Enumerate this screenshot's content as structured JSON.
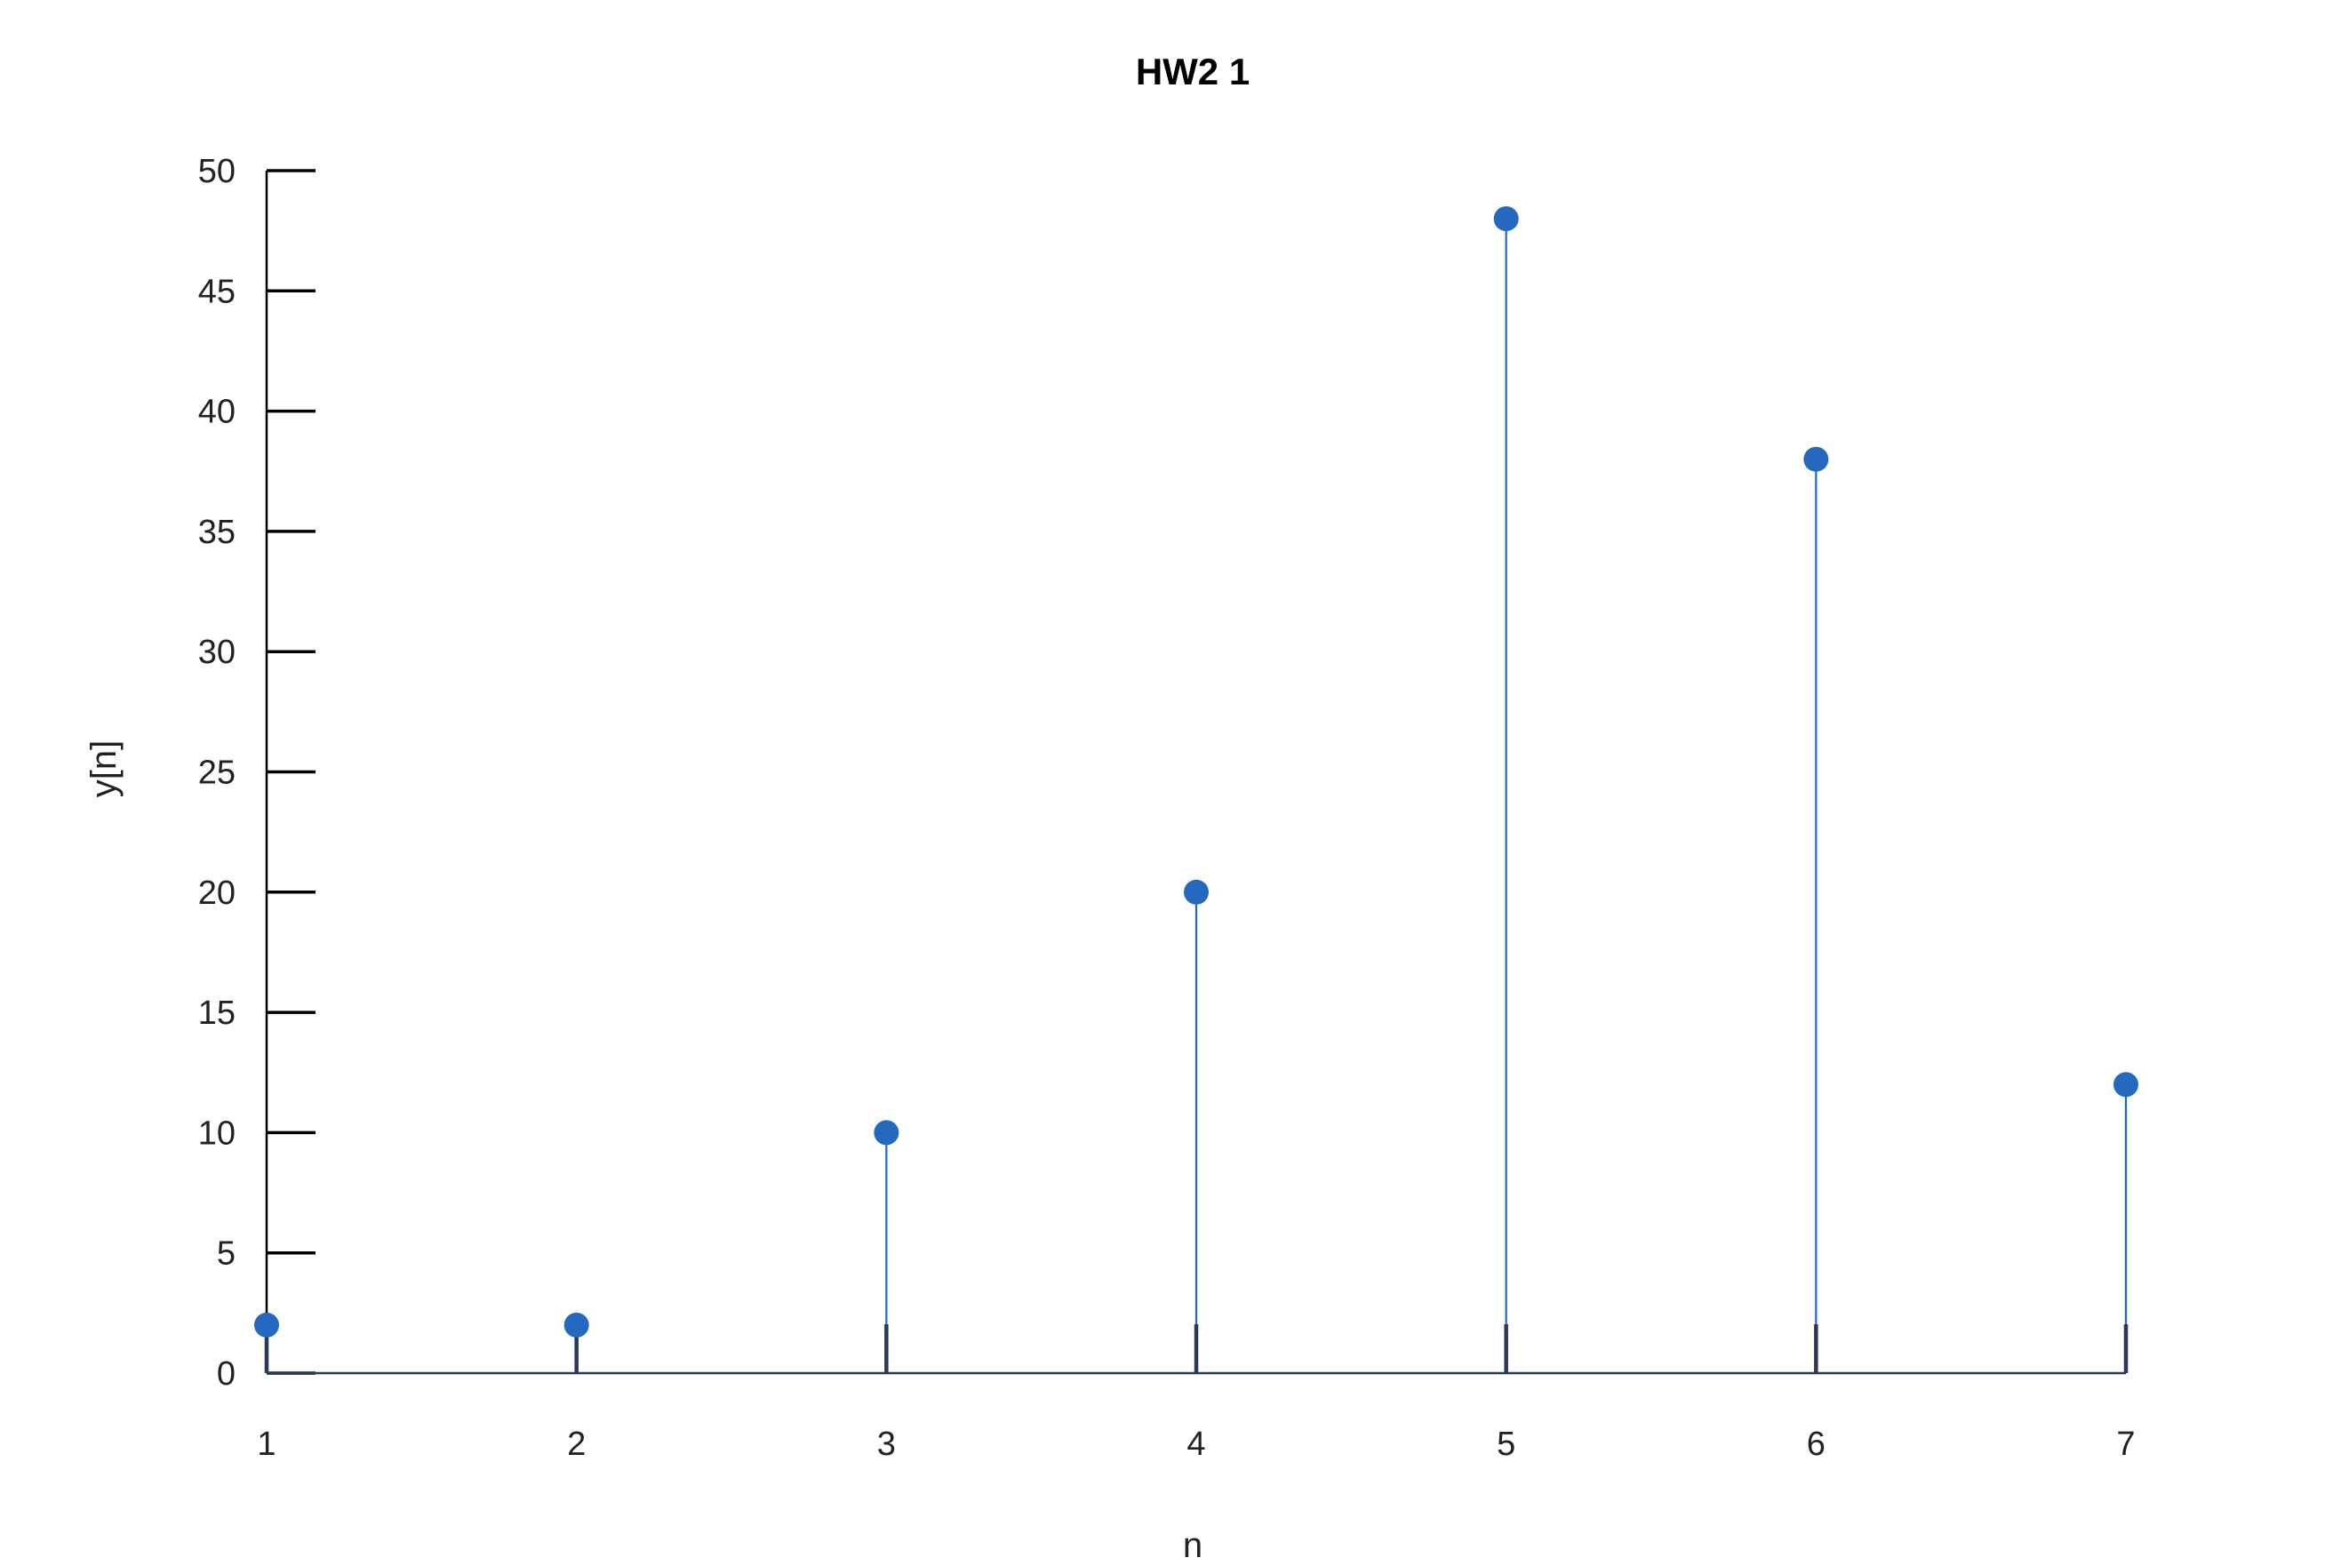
{
  "chart_data": {
    "type": "stem",
    "title": "HW2 1",
    "xlabel": "n",
    "ylabel": "y[n]",
    "x": [
      1,
      2,
      3,
      4,
      5,
      6,
      7
    ],
    "values": [
      2,
      2,
      10,
      20,
      48,
      38,
      12
    ],
    "xlim": [
      1,
      7
    ],
    "ylim": [
      0,
      50
    ],
    "xticks": [
      "1",
      "2",
      "3",
      "4",
      "5",
      "6",
      "7"
    ],
    "yticks": [
      "0",
      "5",
      "10",
      "15",
      "20",
      "25",
      "30",
      "35",
      "40",
      "45",
      "50"
    ],
    "grid": false,
    "colors": {
      "stem": "#1f66c1",
      "marker": "#2468c0",
      "axis": "#000000",
      "baseline": "#2a3a55"
    }
  }
}
